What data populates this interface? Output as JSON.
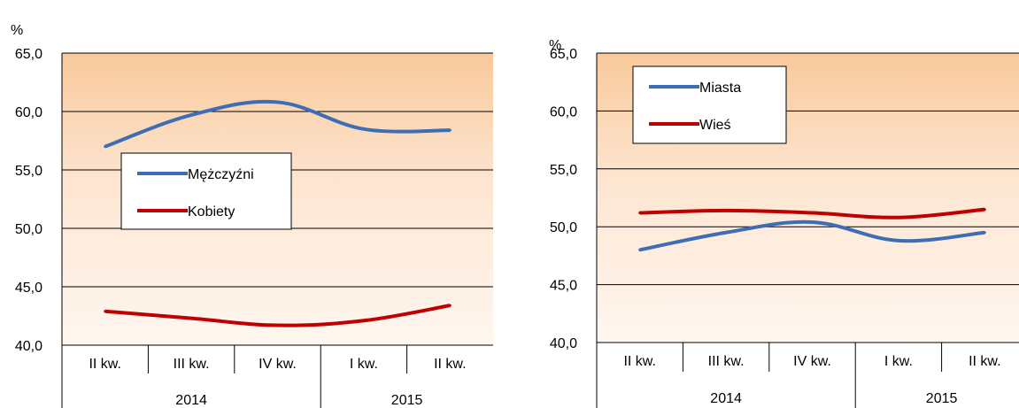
{
  "chart_data": [
    {
      "type": "line",
      "title": "",
      "unit_label": "%",
      "categories": [
        "II kw.",
        "III kw.",
        "IV kw.",
        "I kw.",
        "II kw."
      ],
      "groups": [
        {
          "label": "2014",
          "span": 3
        },
        {
          "label": "2015",
          "span": 2
        }
      ],
      "ylim": [
        40,
        65
      ],
      "yticks": [
        "40,0",
        "45,0",
        "50,0",
        "55,0",
        "60,0",
        "65,0"
      ],
      "series": [
        {
          "name": "Mężczyźni",
          "color": "#3d6db5",
          "values": [
            57.0,
            59.7,
            60.8,
            58.5,
            58.4
          ]
        },
        {
          "name": "Kobiety",
          "color": "#c00000",
          "values": [
            42.9,
            42.3,
            41.7,
            42.1,
            43.4
          ]
        }
      ],
      "grid": true,
      "legend": "middle-left"
    },
    {
      "type": "line",
      "title": "",
      "unit_label": "%",
      "categories": [
        "II kw.",
        "III kw.",
        "IV kw.",
        "I kw.",
        "II kw."
      ],
      "groups": [
        {
          "label": "2014",
          "span": 3
        },
        {
          "label": "2015",
          "span": 2
        }
      ],
      "ylim": [
        40,
        65
      ],
      "yticks": [
        "40,0",
        "45,0",
        "50,0",
        "55,0",
        "60,0",
        "65,0"
      ],
      "series": [
        {
          "name": "Miasta",
          "color": "#3d6db5",
          "values": [
            48.0,
            49.5,
            50.4,
            48.8,
            49.5
          ]
        },
        {
          "name": "Wieś",
          "color": "#c00000",
          "values": [
            51.2,
            51.4,
            51.2,
            50.8,
            51.5
          ]
        }
      ],
      "grid": true,
      "legend": "top-left"
    }
  ]
}
